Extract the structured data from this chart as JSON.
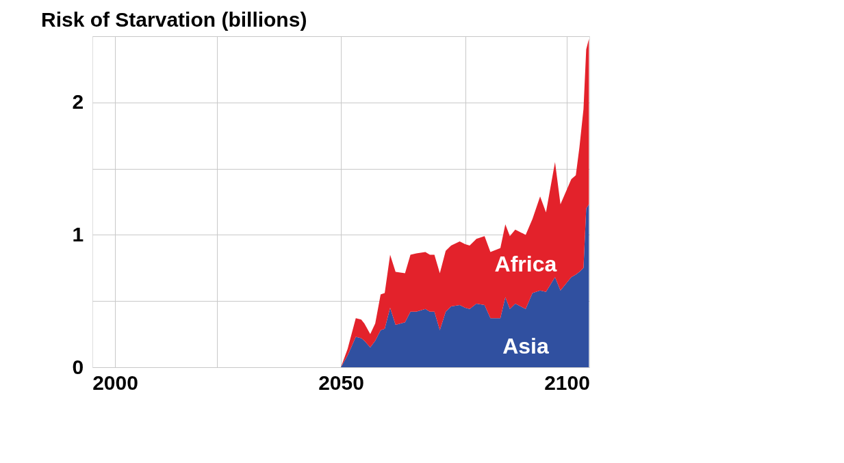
{
  "chart_data": {
    "type": "area",
    "title": "Risk of Starvation (billions)",
    "stacked": true,
    "x": [
      2050.0,
      2051.5,
      2053.3,
      2054.5,
      2055.2,
      2056.5,
      2057.6,
      2058.8,
      2059.7,
      2060.9,
      2062.1,
      2064.2,
      2065.4,
      2066.7,
      2068.7,
      2069.7,
      2070.7,
      2071.9,
      2073.2,
      2074.4,
      2076.3,
      2077.5,
      2078.5,
      2080.0,
      2081.8,
      2083.1,
      2085.3,
      2086.4,
      2087.4,
      2088.6,
      2090.9,
      2092.4,
      2094.1,
      2095.4,
      2097.4,
      2098.6,
      2101.0,
      2102.0,
      2102.8,
      2103.7,
      2104.3,
      2104.9
    ],
    "series": [
      {
        "name": "Asia",
        "color": "#3050a0",
        "values": [
          0,
          0.09,
          0.23,
          0.22,
          0.2,
          0.15,
          0.2,
          0.28,
          0.29,
          0.45,
          0.32,
          0.34,
          0.42,
          0.42,
          0.44,
          0.42,
          0.42,
          0.28,
          0.42,
          0.46,
          0.47,
          0.45,
          0.44,
          0.48,
          0.47,
          0.37,
          0.37,
          0.53,
          0.44,
          0.48,
          0.44,
          0.56,
          0.58,
          0.57,
          0.68,
          0.58,
          0.68,
          0.7,
          0.72,
          0.75,
          1.2,
          1.23
        ]
      },
      {
        "name": "Africa",
        "color": "#e3222b",
        "values": [
          0,
          0.05,
          0.14,
          0.14,
          0.13,
          0.1,
          0.13,
          0.27,
          0.27,
          0.4,
          0.4,
          0.37,
          0.43,
          0.44,
          0.43,
          0.43,
          0.43,
          0.43,
          0.46,
          0.46,
          0.48,
          0.48,
          0.48,
          0.49,
          0.52,
          0.5,
          0.53,
          0.55,
          0.55,
          0.56,
          0.56,
          0.56,
          0.71,
          0.6,
          0.87,
          0.65,
          0.74,
          0.75,
          0.94,
          1.2,
          1.2,
          1.25
        ]
      }
    ],
    "xlim": [
      1995,
      2105
    ],
    "xticks": [
      2000,
      {
        "value": 2022.5,
        "label": null
      },
      2050,
      {
        "value": 2077.5,
        "label": null
      },
      2100
    ],
    "ylim": [
      0,
      2.5
    ],
    "yticks": [
      0,
      {
        "value": 0.5,
        "label": null
      },
      1,
      {
        "value": 1.5,
        "label": null
      },
      2,
      {
        "value": 2.5,
        "label": null
      }
    ],
    "grid": true,
    "legend": false
  }
}
